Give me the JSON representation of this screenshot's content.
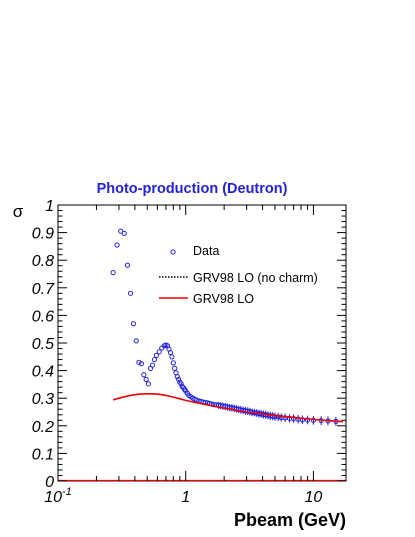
{
  "chart_data": {
    "type": "scatter",
    "title": "Photo-production (Deutron)",
    "xlabel": "Pbeam (GeV)",
    "ylabel": "σ",
    "x_scale": "log",
    "xlim": [
      0.1,
      18
    ],
    "ylim": [
      0,
      1
    ],
    "x_ticks": [
      {
        "value": 0.1,
        "base": "10",
        "exp": "-1"
      },
      {
        "value": 1,
        "label": "1"
      },
      {
        "value": 10,
        "label": "10"
      }
    ],
    "y_ticks": [
      {
        "value": 0,
        "label": "0"
      },
      {
        "value": 0.1,
        "label": "0.1"
      },
      {
        "value": 0.2,
        "label": "0.2"
      },
      {
        "value": 0.3,
        "label": "0.3"
      },
      {
        "value": 0.4,
        "label": "0.4"
      },
      {
        "value": 0.5,
        "label": "0.5"
      },
      {
        "value": 0.6,
        "label": "0.6"
      },
      {
        "value": 0.7,
        "label": "0.7"
      },
      {
        "value": 0.8,
        "label": "0.8"
      },
      {
        "value": 0.9,
        "label": "0.9"
      },
      {
        "value": 1,
        "label": "1"
      }
    ],
    "grid": false,
    "legend_position": "top-right",
    "legend": [
      {
        "label": "Data",
        "style": "open-circle",
        "color": "#2222dd"
      },
      {
        "label": "GRV98 LO (no charm)",
        "style": "dotted-line",
        "color": "#000000"
      },
      {
        "label": "GRV98 LO",
        "style": "solid-line",
        "color": "#ee0000"
      }
    ],
    "series": [
      {
        "style": "markers",
        "color": "#2222dd",
        "points": [
          [
            0.27,
            0.755
          ],
          [
            0.29,
            0.855
          ],
          [
            0.31,
            0.905
          ],
          [
            0.33,
            0.897
          ],
          [
            0.35,
            0.782
          ],
          [
            0.37,
            0.68
          ],
          [
            0.39,
            0.57
          ],
          [
            0.41,
            0.508
          ],
          [
            0.43,
            0.43
          ],
          [
            0.45,
            0.425
          ],
          [
            0.47,
            0.385
          ],
          [
            0.49,
            0.368
          ],
          [
            0.51,
            0.352
          ],
          [
            0.53,
            0.408
          ],
          [
            0.55,
            0.42
          ],
          [
            0.57,
            0.44
          ],
          [
            0.59,
            0.455
          ],
          [
            0.62,
            0.468
          ],
          [
            0.65,
            0.482
          ],
          [
            0.68,
            0.49
          ],
          [
            0.7,
            0.493
          ],
          [
            0.72,
            0.49
          ],
          [
            0.74,
            0.478
          ],
          [
            0.76,
            0.465
          ],
          [
            0.78,
            0.45
          ],
          [
            0.8,
            0.428
          ],
          [
            0.82,
            0.408
          ],
          [
            0.84,
            0.392
          ],
          [
            0.86,
            0.378
          ],
          [
            0.88,
            0.368
          ],
          [
            0.9,
            0.358
          ],
          [
            0.92,
            0.352
          ],
          [
            0.94,
            0.342
          ],
          [
            0.96,
            0.338
          ],
          [
            0.98,
            0.332
          ],
          [
            1.0,
            0.326
          ],
          [
            1.03,
            0.318
          ],
          [
            1.06,
            0.31
          ],
          [
            1.1,
            0.305
          ],
          [
            1.14,
            0.3
          ],
          [
            1.18,
            0.296
          ],
          [
            1.22,
            0.293
          ],
          [
            1.27,
            0.29
          ],
          [
            1.32,
            0.288
          ],
          [
            1.37,
            0.286
          ],
          [
            1.42,
            0.285
          ],
          [
            1.48,
            0.283
          ],
          [
            1.54,
            0.281
          ],
          [
            1.6,
            0.279
          ],
          [
            1.67,
            0.277
          ],
          [
            1.74,
            0.276
          ],
          [
            1.81,
            0.274
          ],
          [
            1.88,
            0.273
          ],
          [
            1.96,
            0.271
          ],
          [
            2.04,
            0.27
          ],
          [
            2.12,
            0.268
          ],
          [
            2.21,
            0.266
          ],
          [
            2.3,
            0.265
          ],
          [
            2.4,
            0.263
          ],
          [
            2.5,
            0.261
          ],
          [
            2.6,
            0.259
          ],
          [
            2.7,
            0.258
          ],
          [
            2.82,
            0.256
          ],
          [
            2.94,
            0.254
          ],
          [
            3.06,
            0.253
          ],
          [
            3.18,
            0.251
          ],
          [
            3.31,
            0.249
          ],
          [
            3.45,
            0.248
          ],
          [
            3.6,
            0.246
          ],
          [
            3.75,
            0.244
          ],
          [
            3.9,
            0.243
          ],
          [
            4.06,
            0.241
          ],
          [
            4.23,
            0.24
          ],
          [
            4.41,
            0.238
          ],
          [
            4.6,
            0.236
          ],
          [
            4.8,
            0.235
          ],
          [
            5.0,
            0.233
          ],
          [
            5.3,
            0.232
          ],
          [
            5.6,
            0.23
          ],
          [
            6.0,
            0.229
          ],
          [
            6.5,
            0.227
          ],
          [
            7.0,
            0.226
          ],
          [
            7.6,
            0.224
          ],
          [
            8.2,
            0.222
          ],
          [
            9.0,
            0.221
          ],
          [
            10.0,
            0.22
          ],
          [
            11.5,
            0.219
          ],
          [
            13.0,
            0.218
          ],
          [
            15.0,
            0.216
          ]
        ]
      },
      {
        "style": "line",
        "color": "#ee0000",
        "points": [
          [
            0.27,
            0.294
          ],
          [
            0.3,
            0.3
          ],
          [
            0.33,
            0.305
          ],
          [
            0.37,
            0.31
          ],
          [
            0.42,
            0.314
          ],
          [
            0.48,
            0.316
          ],
          [
            0.55,
            0.316
          ],
          [
            0.62,
            0.314
          ],
          [
            0.7,
            0.31
          ],
          [
            0.8,
            0.304
          ],
          [
            0.9,
            0.298
          ],
          [
            1.0,
            0.292
          ],
          [
            1.2,
            0.284
          ],
          [
            1.5,
            0.275
          ],
          [
            2.0,
            0.264
          ],
          [
            2.5,
            0.256
          ],
          [
            3.0,
            0.25
          ],
          [
            4.0,
            0.243
          ],
          [
            5.0,
            0.237
          ],
          [
            6.0,
            0.233
          ],
          [
            8.0,
            0.227
          ],
          [
            10.0,
            0.223
          ],
          [
            13.0,
            0.219
          ],
          [
            17.0,
            0.215
          ]
        ]
      }
    ]
  }
}
